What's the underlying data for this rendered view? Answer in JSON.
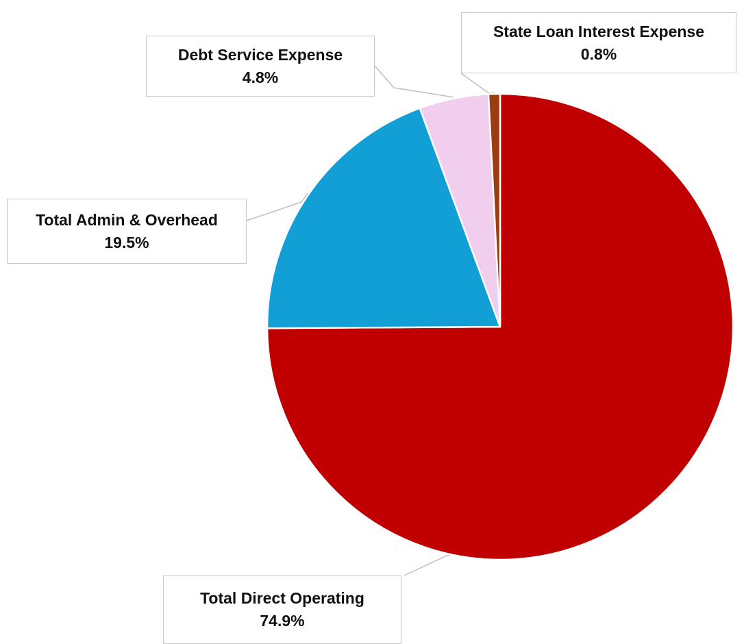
{
  "chart_data": {
    "type": "pie",
    "title": "",
    "start_angle_deg": 0,
    "direction": "clockwise",
    "slices": [
      {
        "label": "Total Direct Operating",
        "value": 74.9,
        "value_label": "74.9%",
        "color": "#c00000"
      },
      {
        "label": "Total Admin & Overhead",
        "value": 19.5,
        "value_label": "19.5%",
        "color": "#119fd6"
      },
      {
        "label": "Debt Service Expense",
        "value": 4.8,
        "value_label": "4.8%",
        "color": "#f1cdee"
      },
      {
        "label": "State Loan Interest Expense",
        "value": 0.8,
        "value_label": "0.8%",
        "color": "#9c3d0f"
      }
    ],
    "legend": "none",
    "data_labels": "callouts with leader lines"
  }
}
